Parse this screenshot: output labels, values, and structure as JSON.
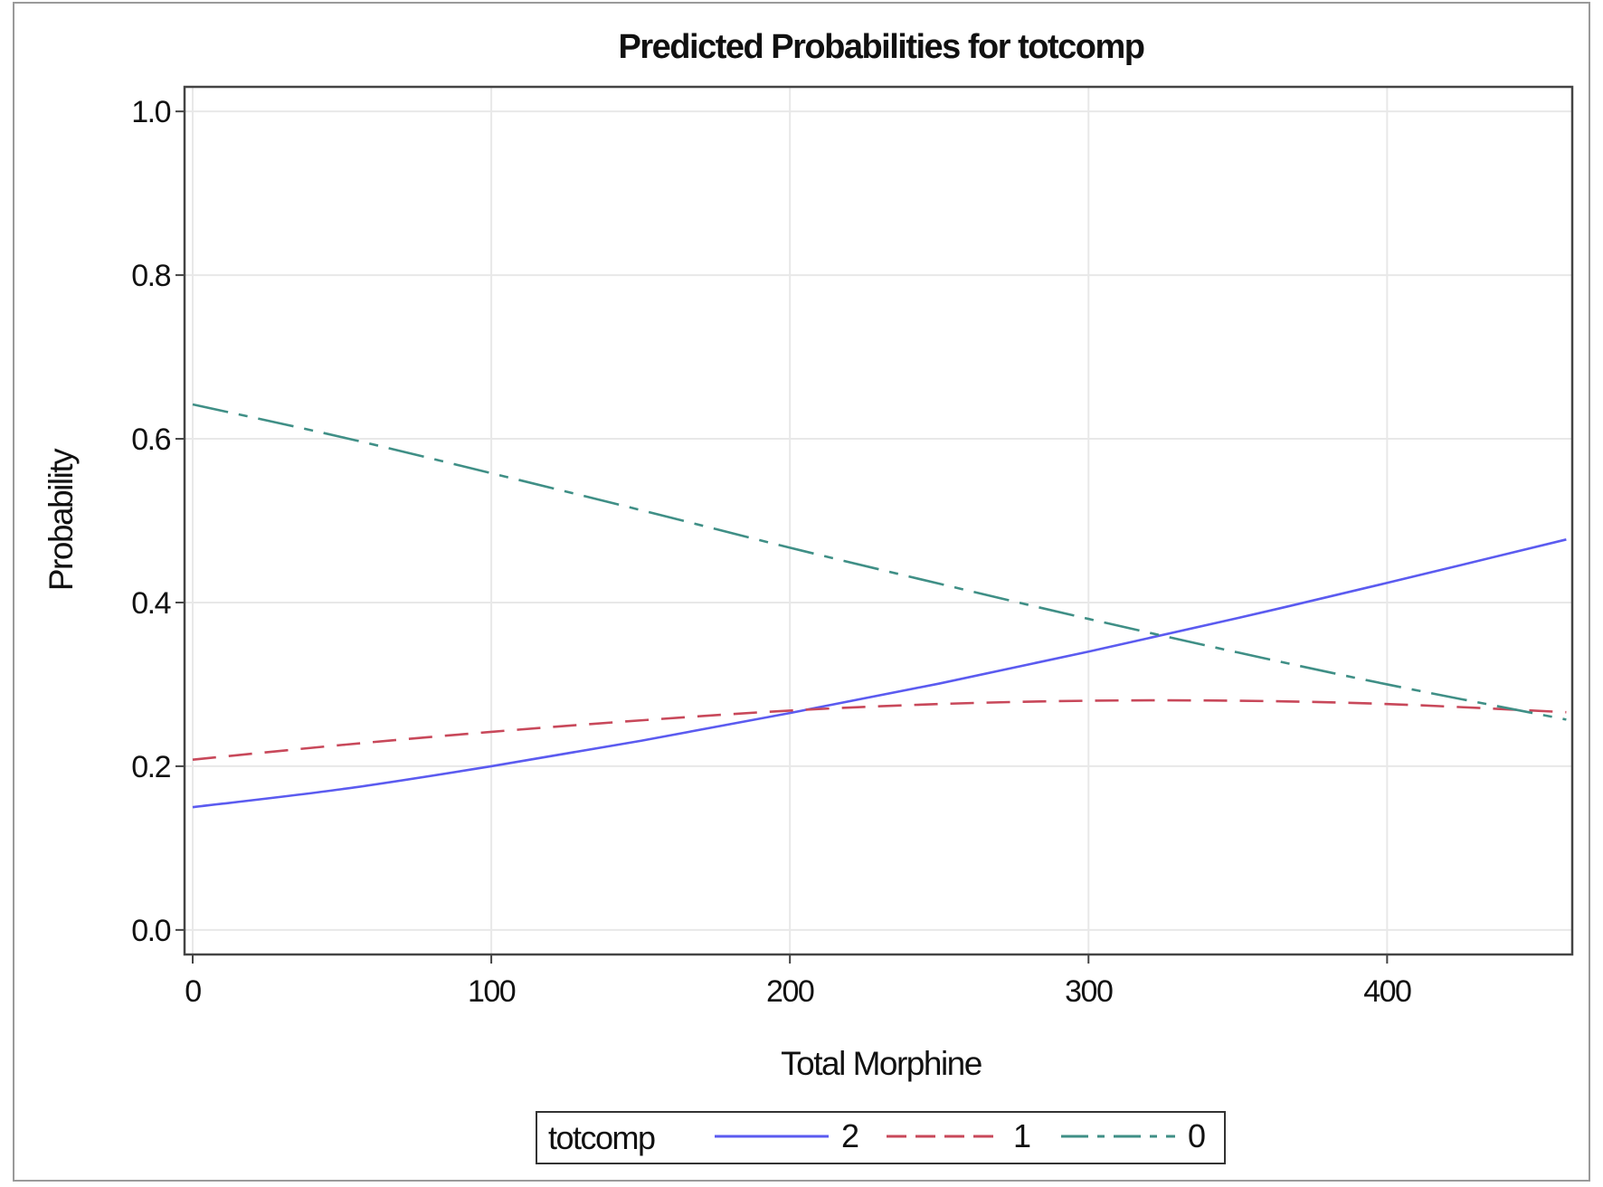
{
  "chart_data": {
    "type": "line",
    "title": "Predicted Probabilities for totcomp",
    "xlabel": "Total Morphine",
    "ylabel": "Probability",
    "xlim": [
      0,
      462
    ],
    "ylim": [
      -0.03,
      1.03
    ],
    "xticks": [
      0,
      100,
      200,
      300,
      400
    ],
    "xtick_labels": [
      "0",
      "100",
      "200",
      "300",
      "400"
    ],
    "yticks": [
      0.0,
      0.2,
      0.4,
      0.6,
      0.8,
      1.0
    ],
    "ytick_labels": [
      "0.0",
      "0.2",
      "0.4",
      "0.6",
      "0.8",
      "1.0"
    ],
    "grid": true,
    "legend": {
      "title": "totcomp",
      "position": "bottom"
    },
    "x": [
      0,
      50,
      100,
      150,
      200,
      250,
      300,
      350,
      400,
      460
    ],
    "series": [
      {
        "name": "2",
        "color": "#5b5bf0",
        "dash": "solid",
        "values": [
          0.15,
          0.172,
          0.2,
          0.231,
          0.265,
          0.301,
          0.34,
          0.381,
          0.424,
          0.477
        ]
      },
      {
        "name": "1",
        "color": "#c8485a",
        "dash": "dash",
        "values": [
          0.208,
          0.226,
          0.242,
          0.256,
          0.268,
          0.276,
          0.28,
          0.28,
          0.276,
          0.266
        ]
      },
      {
        "name": "0",
        "color": "#3f8f86",
        "dash": "dashdot",
        "values": [
          0.642,
          0.602,
          0.558,
          0.513,
          0.467,
          0.423,
          0.38,
          0.339,
          0.3,
          0.257
        ]
      }
    ]
  }
}
